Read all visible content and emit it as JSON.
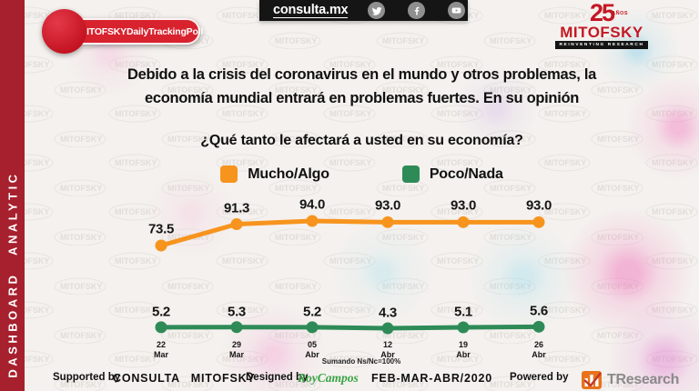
{
  "sidebar": {
    "label": "DASHBOARD ANALYTIC"
  },
  "topbar": {
    "badge": "#MITOFSKYDailyTrackingPoll",
    "site": "consulta.mx",
    "social_icons": [
      "twitter",
      "facebook",
      "youtube"
    ]
  },
  "brand": {
    "years": "25",
    "years_suffix": "AÑOS",
    "name": "MITOFSKY",
    "tagline": "REINVENTING RESEARCH"
  },
  "question": {
    "line1": "Debido a la crisis del coronavirus en el mundo y otros problemas, la",
    "line2": "economía mundial entrará en problemas fuertes. En su opinión",
    "subtitle": "¿Qué tanto le afectará a usted en su economía?"
  },
  "chart_data": {
    "type": "line",
    "categories": [
      "22 Mar",
      "29 Mar",
      "05 Abr",
      "12 Abr",
      "19 Abr",
      "26 Abr"
    ],
    "series": [
      {
        "name": "Mucho/Algo",
        "color": "#f7941e",
        "values": [
          73.5,
          91.3,
          94.0,
          93.0,
          93.0,
          93.0
        ],
        "labels": [
          "73.5",
          "91.3",
          "94.0",
          "93.0",
          "93.0",
          "93.0"
        ]
      },
      {
        "name": "Poco/Nada",
        "color": "#2e8b57",
        "values": [
          5.2,
          5.3,
          5.2,
          4.3,
          5.1,
          5.6
        ],
        "labels": [
          "5.2",
          "5.3",
          "5.2",
          "4.3",
          "5.1",
          "5.6"
        ]
      }
    ],
    "note": "Sumando Ns/Nc=100%",
    "legend_position": "top",
    "grid": false,
    "ylim": [
      0,
      100
    ]
  },
  "footer": {
    "supported_by": "Supported by",
    "supported_brand": "CONSULTA  MITOFSKY",
    "designed_by": "Designed by",
    "designer": "RoyCampos",
    "period": "FEB-MAR-ABR/2020",
    "powered_by": "Powered by",
    "powered_brand": "TResearch"
  },
  "colors": {
    "sidebar_red": "#a7202e",
    "badge_red": "#d8232f",
    "orange": "#f7941e",
    "green": "#2e8b57"
  }
}
